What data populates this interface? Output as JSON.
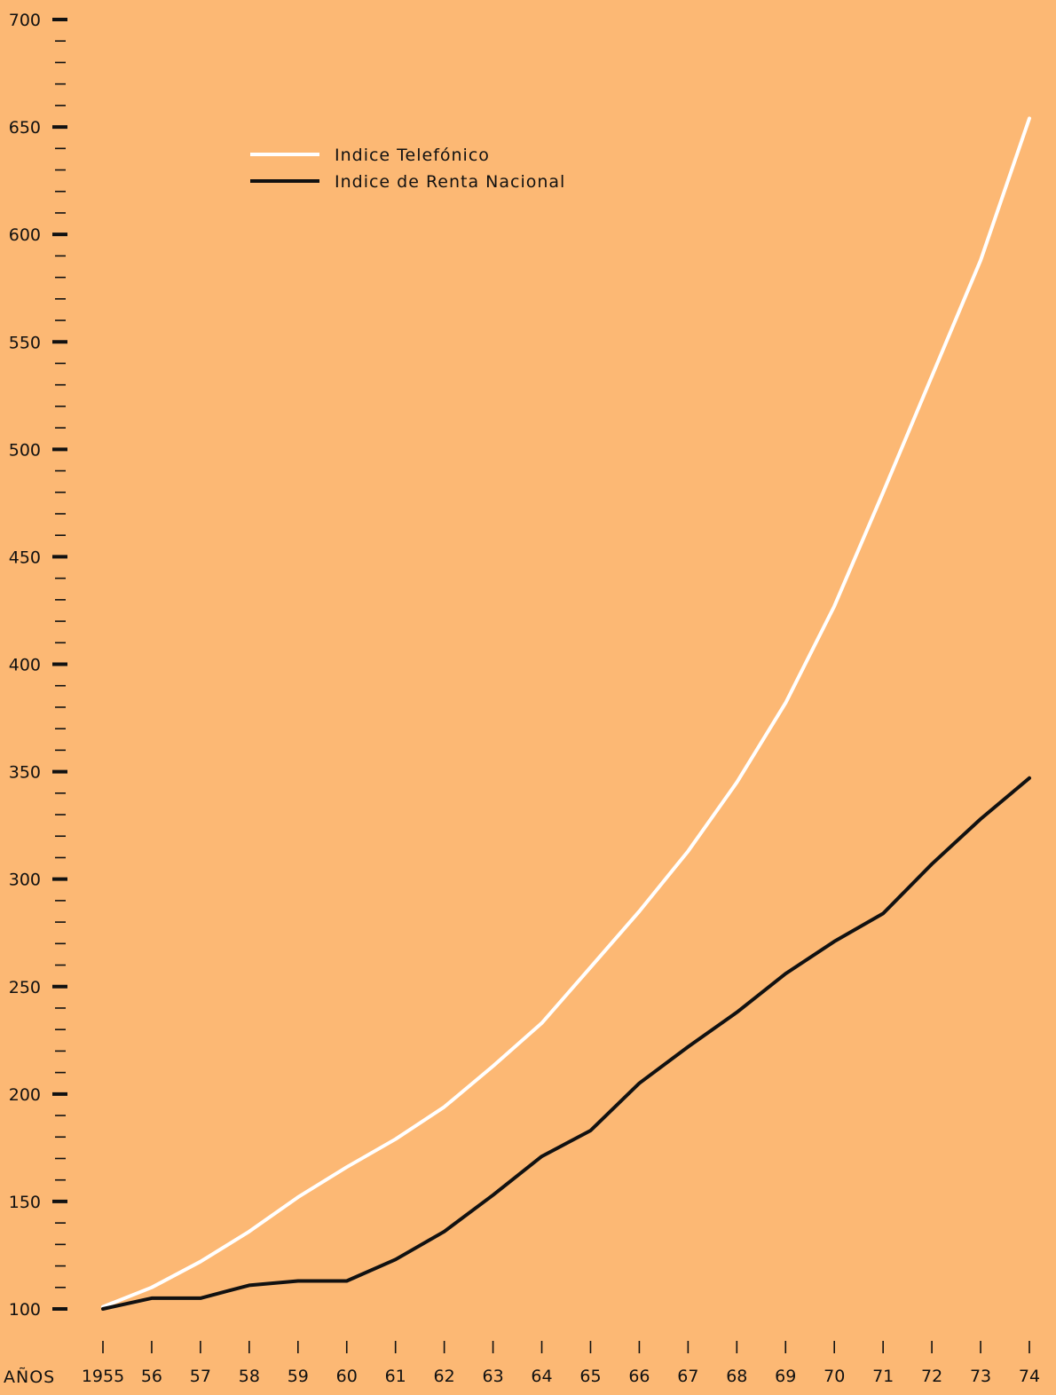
{
  "chart_data": {
    "type": "line",
    "title": "",
    "xlabel": "AÑOS",
    "ylabel": "",
    "x": [
      "1955",
      "56",
      "57",
      "58",
      "59",
      "60",
      "61",
      "62",
      "63",
      "64",
      "65",
      "66",
      "67",
      "68",
      "69",
      "70",
      "71",
      "72",
      "73",
      "74"
    ],
    "ylim": [
      100,
      700
    ],
    "yticks": [
      100,
      150,
      200,
      250,
      300,
      350,
      400,
      450,
      500,
      550,
      600,
      650,
      700
    ],
    "minor_tick_step": 10,
    "grid": false,
    "legend_position": "top-left",
    "series": [
      {
        "name": "Indice Telefónico",
        "color": "#FFFFFF",
        "values": [
          101,
          110,
          122,
          136,
          152,
          166,
          179,
          194,
          213,
          233,
          259,
          285,
          313,
          345,
          382,
          427,
          480,
          534,
          588,
          654
        ]
      },
      {
        "name": "Indice de Renta Nacional",
        "color": "#111111",
        "values": [
          100,
          105,
          105,
          111,
          113,
          113,
          123,
          136,
          153,
          171,
          183,
          205,
          222,
          238,
          256,
          271,
          284,
          307,
          328,
          347
        ]
      }
    ]
  }
}
